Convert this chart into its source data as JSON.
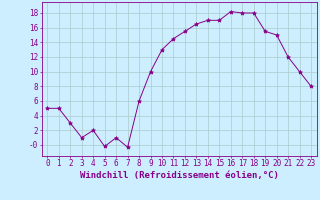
{
  "x": [
    0,
    1,
    2,
    3,
    4,
    5,
    6,
    7,
    8,
    9,
    10,
    11,
    12,
    13,
    14,
    15,
    16,
    17,
    18,
    19,
    20,
    21,
    22,
    23
  ],
  "y": [
    5,
    5,
    3,
    1,
    2,
    -0.2,
    1,
    -0.3,
    6,
    10,
    13,
    14.5,
    15.5,
    16.5,
    17,
    17,
    18.2,
    18,
    18,
    15.5,
    15,
    12,
    10,
    8
  ],
  "line_color": "#880088",
  "marker": "*",
  "marker_size": 3,
  "marker_color": "#880088",
  "bg_color": "#cceeff",
  "grid_color": "#aacccc",
  "xlabel": "Windchill (Refroidissement éolien,°C)",
  "xlim": [
    -0.5,
    23.5
  ],
  "ylim": [
    -1.5,
    19.5
  ],
  "yticks": [
    0,
    2,
    4,
    6,
    8,
    10,
    12,
    14,
    16,
    18
  ],
  "ytick_labels": [
    "-0",
    "2",
    "4",
    "6",
    "8",
    "10",
    "12",
    "14",
    "16",
    "18"
  ],
  "xticks": [
    0,
    1,
    2,
    3,
    4,
    5,
    6,
    7,
    8,
    9,
    10,
    11,
    12,
    13,
    14,
    15,
    16,
    17,
    18,
    19,
    20,
    21,
    22,
    23
  ],
  "tick_color": "#880088",
  "spine_color": "#880088",
  "label_color": "#880088",
  "font_family": "monospace",
  "tick_fontsize": 5.5,
  "xlabel_fontsize": 6.5
}
